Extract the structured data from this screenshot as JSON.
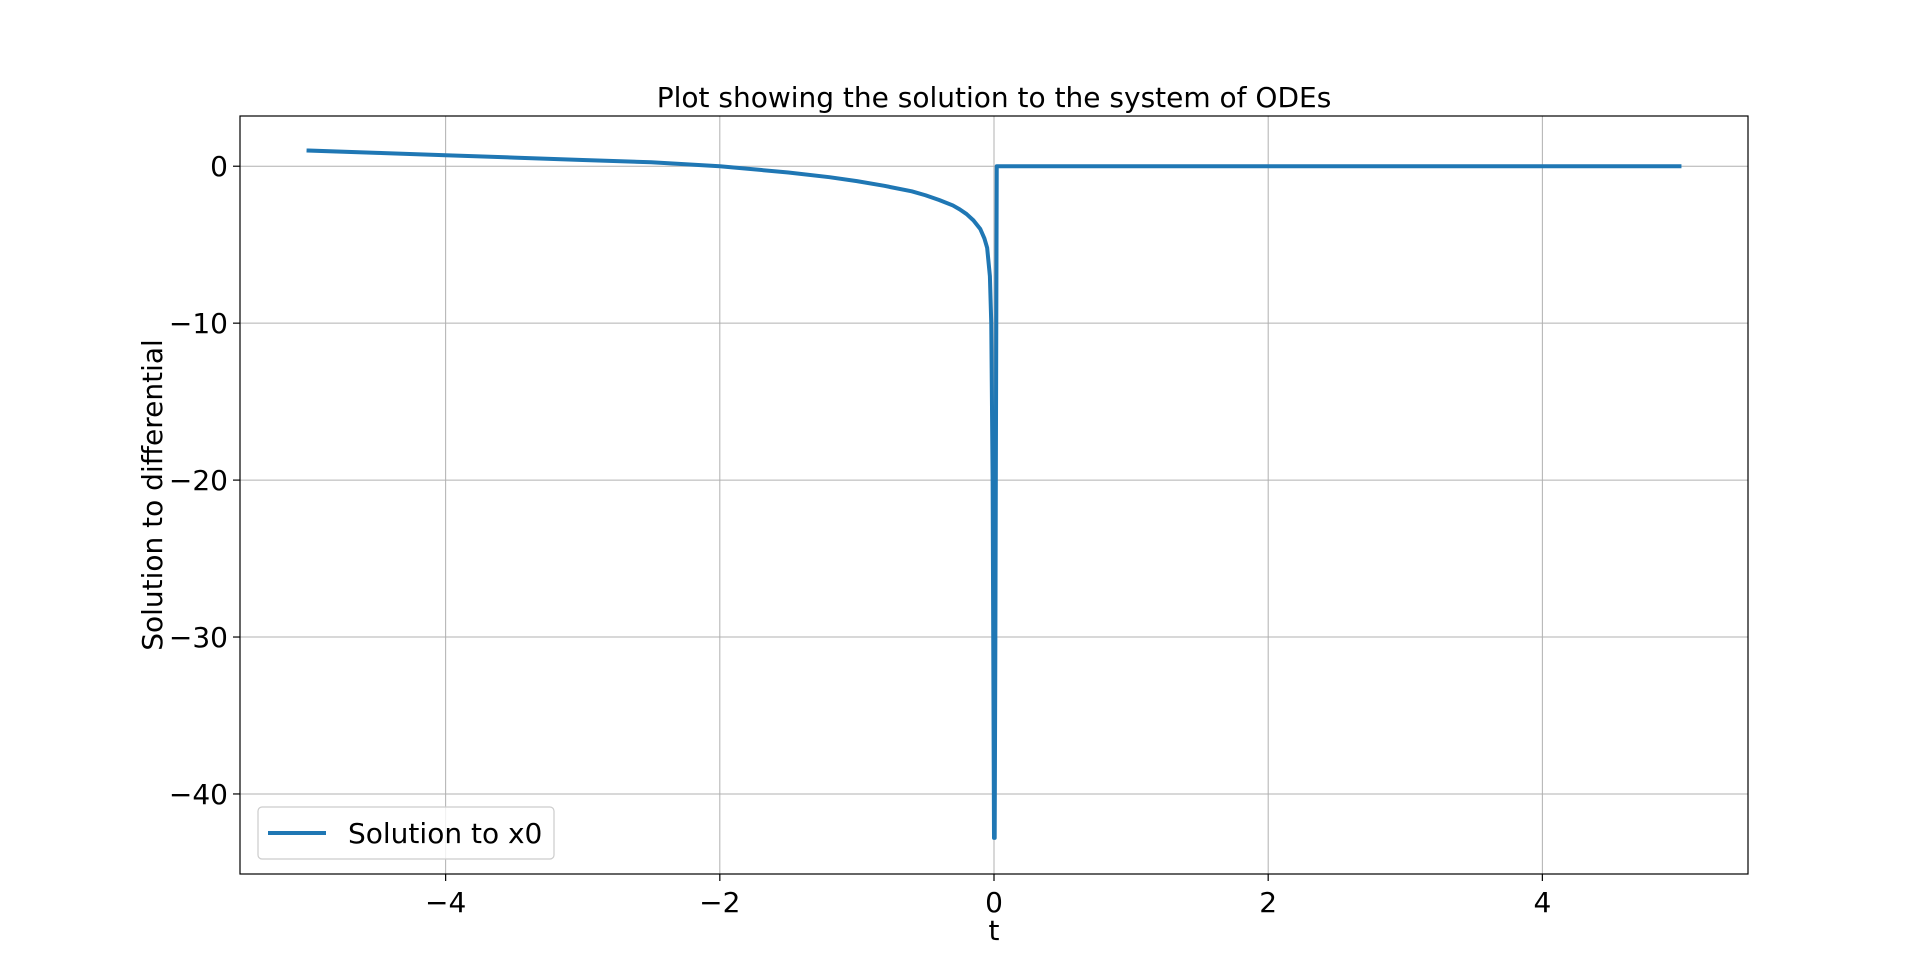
{
  "chart_data": {
    "type": "line",
    "title": "Plot showing the solution to the system of ODEs",
    "xlabel": "t",
    "ylabel": "Solution to differential",
    "xlim": [
      -5.5,
      5.5
    ],
    "ylim": [
      -45.1,
      3.2
    ],
    "x_ticks": [
      -4,
      -2,
      0,
      2,
      4
    ],
    "x_tick_labels": [
      "−4",
      "−2",
      "0",
      "2",
      "4"
    ],
    "y_ticks": [
      0,
      -10,
      -20,
      -30,
      -40
    ],
    "y_tick_labels": [
      "0",
      "−10",
      "−20",
      "−30",
      "−40"
    ],
    "grid": true,
    "legend": {
      "location": "lower-left"
    },
    "series": [
      {
        "name": "Solution to x0",
        "color": "#1f77b4",
        "x": [
          -5.0,
          -4.5,
          -4.0,
          -3.5,
          -3.0,
          -2.5,
          -2.0,
          -1.5,
          -1.2,
          -1.0,
          -0.8,
          -0.6,
          -0.5,
          -0.4,
          -0.3,
          -0.25,
          -0.2,
          -0.15,
          -0.1,
          -0.07,
          -0.05,
          -0.03,
          -0.02,
          -0.01,
          0.0,
          0.005,
          0.01,
          0.02,
          0.03,
          0.05,
          0.1,
          0.5,
          1.0,
          2.0,
          3.0,
          4.0,
          5.0
        ],
        "y": [
          1.0,
          0.85,
          0.7,
          0.55,
          0.4,
          0.25,
          0.0,
          -0.4,
          -0.7,
          -0.95,
          -1.25,
          -1.6,
          -1.85,
          -2.15,
          -2.5,
          -2.75,
          -3.05,
          -3.45,
          -4.0,
          -4.6,
          -5.2,
          -7.0,
          -10.0,
          -20.0,
          -42.8,
          -42.8,
          -30.0,
          0.0,
          0.0,
          0.0,
          0.0,
          0.0,
          0.0,
          0.0,
          0.0,
          0.0,
          0.0
        ]
      }
    ]
  }
}
